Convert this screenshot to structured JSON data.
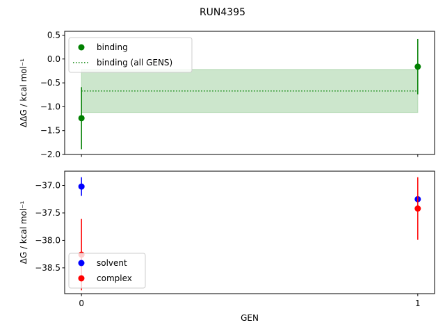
{
  "chart_data": [
    {
      "type": "scatter",
      "suptitle": "RUN4395",
      "ylabel": "ΔΔG / kcal mol⁻¹",
      "xlabel": "",
      "xlim": [
        -0.05,
        1.05
      ],
      "ylim": [
        -2.0,
        0.58
      ],
      "yticks": [
        0.5,
        0.0,
        -0.5,
        -1.0,
        -1.5,
        -2.0
      ],
      "ytick_labels": [
        "0.5",
        "0.0",
        "−0.5",
        "−1.0",
        "−1.5",
        "−2.0"
      ],
      "xticks": [
        0,
        1
      ],
      "legend_loc": "upper-left",
      "series": [
        {
          "name": "binding",
          "color": "#008000",
          "x": [
            0,
            1
          ],
          "y": [
            -1.24,
            -0.16
          ],
          "yerr": [
            0.65,
            0.58
          ]
        }
      ],
      "hline": {
        "name": "binding (all GENS)",
        "color": "#008000",
        "y": -0.67,
        "err": 0.45,
        "x": [
          0,
          1
        ],
        "band_color": "#cce6cc"
      }
    },
    {
      "type": "scatter",
      "xlabel": "GEN",
      "ylabel": "ΔG / kcal mol⁻¹",
      "xlim": [
        -0.05,
        1.05
      ],
      "ylim": [
        -38.97,
        -36.74
      ],
      "yticks": [
        -37.0,
        -37.5,
        -38.0,
        -38.5
      ],
      "ytick_labels": [
        "−37.0",
        "−37.5",
        "−38.0",
        "−38.5"
      ],
      "xticks": [
        0,
        1
      ],
      "xtick_labels": [
        "0",
        "1"
      ],
      "legend_loc": "lower-left",
      "series": [
        {
          "name": "solvent",
          "color": "#0000ff",
          "x": [
            0,
            1
          ],
          "y": [
            -37.02,
            -37.25
          ],
          "yerr": [
            0.17,
            0.05
          ]
        },
        {
          "name": "complex",
          "color": "#ff0000",
          "x": [
            0,
            1
          ],
          "y": [
            -38.26,
            -37.42
          ],
          "yerr": [
            0.65,
            0.57
          ]
        }
      ]
    }
  ]
}
